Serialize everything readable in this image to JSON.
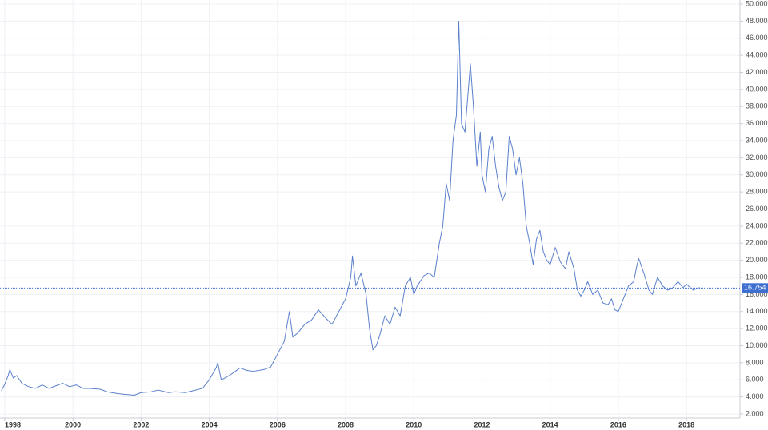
{
  "chart_data": {
    "type": "line",
    "x": [
      1997.9,
      1998.0,
      1998.1,
      1998.15,
      1998.25,
      1998.35,
      1998.5,
      1998.7,
      1998.9,
      1999.1,
      1999.3,
      1999.5,
      1999.7,
      1999.9,
      2000.1,
      2000.3,
      2000.5,
      2000.8,
      2001.0,
      2001.3,
      2001.5,
      2001.8,
      2002.0,
      2002.3,
      2002.5,
      2002.8,
      2003.0,
      2003.3,
      2003.5,
      2003.8,
      2004.0,
      2004.2,
      2004.25,
      2004.35,
      2004.5,
      2004.7,
      2004.9,
      2005.1,
      2005.3,
      2005.6,
      2005.8,
      2006.0,
      2006.2,
      2006.35,
      2006.45,
      2006.6,
      2006.8,
      2007.0,
      2007.2,
      2007.4,
      2007.6,
      2007.8,
      2008.0,
      2008.15,
      2008.2,
      2008.3,
      2008.45,
      2008.6,
      2008.7,
      2008.8,
      2008.9,
      2009.0,
      2009.15,
      2009.3,
      2009.45,
      2009.6,
      2009.75,
      2009.9,
      2010.0,
      2010.1,
      2010.3,
      2010.45,
      2010.6,
      2010.75,
      2010.85,
      2010.95,
      2011.05,
      2011.15,
      2011.25,
      2011.32,
      2011.4,
      2011.5,
      2011.6,
      2011.66,
      2011.75,
      2011.85,
      2011.95,
      2012.0,
      2012.1,
      2012.2,
      2012.3,
      2012.4,
      2012.5,
      2012.6,
      2012.7,
      2012.8,
      2012.9,
      2013.0,
      2013.1,
      2013.2,
      2013.3,
      2013.4,
      2013.5,
      2013.6,
      2013.7,
      2013.8,
      2013.9,
      2014.0,
      2014.15,
      2014.3,
      2014.45,
      2014.55,
      2014.7,
      2014.8,
      2014.9,
      2015.0,
      2015.1,
      2015.25,
      2015.4,
      2015.55,
      2015.7,
      2015.8,
      2015.9,
      2016.0,
      2016.15,
      2016.3,
      2016.45,
      2016.55,
      2016.6,
      2016.75,
      2016.9,
      2017.0,
      2017.15,
      2017.3,
      2017.45,
      2017.6,
      2017.75,
      2017.9,
      2018.0,
      2018.2,
      2018.35,
      2018.4
    ],
    "series": [
      {
        "color": "#5b80cc",
        "values": [
          4.7,
          5.5,
          6.5,
          7.2,
          6.2,
          6.5,
          5.6,
          5.2,
          5.0,
          5.4,
          5.0,
          5.3,
          5.6,
          5.2,
          5.4,
          5.0,
          5.0,
          4.9,
          4.6,
          4.4,
          4.3,
          4.2,
          4.5,
          4.6,
          4.8,
          4.5,
          4.6,
          4.5,
          4.7,
          5.0,
          6.0,
          7.4,
          8.0,
          6.0,
          6.3,
          6.8,
          7.4,
          7.1,
          7.0,
          7.2,
          7.5,
          9.0,
          10.5,
          14.0,
          11.0,
          11.5,
          12.5,
          13.0,
          14.2,
          13.3,
          12.5,
          14.0,
          15.5,
          18.0,
          20.5,
          17.0,
          18.5,
          16.0,
          12.0,
          9.5,
          10.0,
          11.2,
          13.5,
          12.5,
          14.5,
          13.5,
          17.0,
          18.0,
          16.0,
          17.0,
          18.2,
          18.5,
          18.0,
          22.0,
          24.0,
          29.0,
          27.0,
          34.0,
          37.0,
          48.0,
          36.0,
          35.0,
          40.0,
          43.0,
          38.0,
          31.0,
          35.0,
          30.0,
          28.0,
          33.0,
          34.5,
          31.0,
          28.5,
          27.0,
          28.0,
          34.5,
          33.0,
          30.0,
          32.0,
          29.0,
          24.0,
          22.0,
          19.5,
          22.5,
          23.5,
          21.0,
          20.0,
          19.5,
          21.5,
          19.8,
          19.0,
          21.0,
          19.0,
          16.5,
          15.8,
          16.5,
          17.5,
          16.0,
          16.5,
          15.0,
          14.8,
          15.5,
          14.2,
          14.0,
          15.5,
          17.0,
          17.5,
          19.5,
          20.2,
          18.5,
          16.5,
          16.0,
          18.0,
          17.0,
          16.5,
          16.8,
          17.5,
          16.8,
          17.2,
          16.5,
          16.8,
          16.75
        ]
      }
    ],
    "current": 16.754,
    "current_color": "#3d6fd1",
    "xlim": [
      1997.86,
      2019.57
    ],
    "xticks": [
      1998,
      2000,
      2002,
      2004,
      2006,
      2008,
      2010,
      2012,
      2014,
      2016,
      2018
    ],
    "ylim": [
      2,
      50
    ],
    "yticks": [
      {
        "value": 2,
        "label": "2.000"
      },
      {
        "value": 4,
        "label": "4.000"
      },
      {
        "value": 6,
        "label": "6.000"
      },
      {
        "value": 8,
        "label": "8.000"
      },
      {
        "value": 10,
        "label": "10.000"
      },
      {
        "value": 12,
        "label": "12.000"
      },
      {
        "value": 14,
        "label": "14.000"
      },
      {
        "value": 16,
        "label": "16.000"
      },
      {
        "value": 18,
        "label": "18.000"
      },
      {
        "value": 20,
        "label": "20.000"
      },
      {
        "value": 22,
        "label": "22.000"
      },
      {
        "value": 24,
        "label": "24.000"
      },
      {
        "value": 26,
        "label": "26.000"
      },
      {
        "value": 28,
        "label": "28.000"
      },
      {
        "value": 30,
        "label": "30.000"
      },
      {
        "value": 32,
        "label": "32.000"
      },
      {
        "value": 34,
        "label": "34.000"
      },
      {
        "value": 36,
        "label": "36.000"
      },
      {
        "value": 38,
        "label": "38.000"
      },
      {
        "value": 40,
        "label": "40.000"
      },
      {
        "value": 42,
        "label": "42.000"
      },
      {
        "value": 44,
        "label": "44.000"
      },
      {
        "value": 46,
        "label": "46.000"
      },
      {
        "value": 48,
        "label": "48.000"
      },
      {
        "value": 50,
        "label": "50.000"
      }
    ],
    "grid": true
  }
}
